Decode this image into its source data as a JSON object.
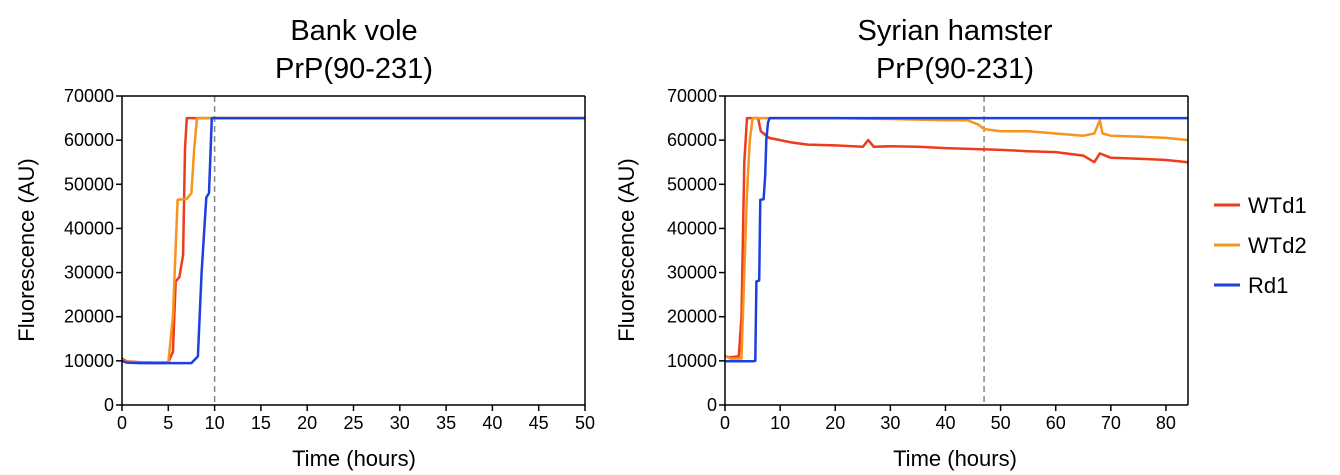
{
  "chart_data": [
    {
      "type": "line",
      "title_line1": "Bank vole",
      "title_line2": "PrP(90-231)",
      "xlabel": "Time (hours)",
      "ylabel": "Fluorescence (AU)",
      "xlim": [
        0,
        50
      ],
      "ylim": [
        0,
        70000
      ],
      "xticks": [
        0,
        5,
        10,
        15,
        20,
        25,
        30,
        35,
        40,
        45,
        50
      ],
      "yticks": [
        0,
        10000,
        20000,
        30000,
        40000,
        50000,
        60000,
        70000
      ],
      "grid": false,
      "vline_x": 10,
      "series": [
        {
          "name": "WTd1",
          "color": "#ee3b1b",
          "points": [
            [
              0,
              10500
            ],
            [
              0.5,
              9900
            ],
            [
              2,
              9700
            ],
            [
              4,
              9600
            ],
            [
              5,
              9700
            ],
            [
              5.5,
              12000
            ],
            [
              5.8,
              28000
            ],
            [
              6.2,
              29000
            ],
            [
              6.6,
              34000
            ],
            [
              6.8,
              58000
            ],
            [
              7,
              65000
            ],
            [
              10,
              65000
            ],
            [
              50,
              65000
            ]
          ]
        },
        {
          "name": "WTd2",
          "color": "#f7941d",
          "points": [
            [
              0,
              10200
            ],
            [
              0.5,
              9800
            ],
            [
              2,
              9600
            ],
            [
              4,
              9500
            ],
            [
              5,
              9600
            ],
            [
              5.5,
              20000
            ],
            [
              6,
              46500
            ],
            [
              7,
              46700
            ],
            [
              7.5,
              48000
            ],
            [
              7.8,
              58000
            ],
            [
              8.1,
              65000
            ],
            [
              10,
              65000
            ],
            [
              50,
              65000
            ]
          ]
        },
        {
          "name": "Rd1",
          "color": "#1c3fe0",
          "points": [
            [
              0,
              10000
            ],
            [
              0.5,
              9600
            ],
            [
              2,
              9500
            ],
            [
              7.5,
              9500
            ],
            [
              8.2,
              11000
            ],
            [
              8.6,
              30000
            ],
            [
              9.1,
              47000
            ],
            [
              9.4,
              48000
            ],
            [
              9.7,
              65000
            ],
            [
              10,
              65000
            ],
            [
              50,
              65000
            ]
          ]
        }
      ]
    },
    {
      "type": "line",
      "title_line1": "Syrian hamster",
      "title_line2": "PrP(90-231)",
      "xlabel": "Time (hours)",
      "ylabel": "Fluorescence (AU)",
      "xlim": [
        0,
        84
      ],
      "ylim": [
        0,
        70000
      ],
      "xticks": [
        0,
        10,
        20,
        30,
        40,
        50,
        60,
        70,
        80
      ],
      "yticks": [
        0,
        10000,
        20000,
        30000,
        40000,
        50000,
        60000,
        70000
      ],
      "grid": false,
      "vline_x": 47,
      "legend_position": "right",
      "series": [
        {
          "name": "WTd1",
          "color": "#ee3b1b",
          "points": [
            [
              0,
              11000
            ],
            [
              1,
              10800
            ],
            [
              2.5,
              11000
            ],
            [
              3,
              20000
            ],
            [
              3.5,
              55000
            ],
            [
              4,
              65000
            ],
            [
              6,
              65000
            ],
            [
              6.5,
              62000
            ],
            [
              8,
              60500
            ],
            [
              10,
              60000
            ],
            [
              12,
              59500
            ],
            [
              15,
              59000
            ],
            [
              20,
              58800
            ],
            [
              25,
              58500
            ],
            [
              26,
              60000
            ],
            [
              27,
              58500
            ],
            [
              30,
              58600
            ],
            [
              35,
              58500
            ],
            [
              40,
              58200
            ],
            [
              45,
              58000
            ],
            [
              50,
              57800
            ],
            [
              55,
              57500
            ],
            [
              60,
              57300
            ],
            [
              65,
              56500
            ],
            [
              67,
              55000
            ],
            [
              68,
              57000
            ],
            [
              70,
              56000
            ],
            [
              75,
              55800
            ],
            [
              80,
              55500
            ],
            [
              84,
              55000
            ]
          ]
        },
        {
          "name": "WTd2",
          "color": "#f7941d",
          "points": [
            [
              0,
              11200
            ],
            [
              1,
              10500
            ],
            [
              3,
              10500
            ],
            [
              3.5,
              30000
            ],
            [
              4,
              48000
            ],
            [
              4.5,
              60000
            ],
            [
              5,
              65000
            ],
            [
              20,
              65000
            ],
            [
              30,
              64800
            ],
            [
              40,
              64500
            ],
            [
              44,
              64500
            ],
            [
              46,
              63500
            ],
            [
              47,
              62500
            ],
            [
              50,
              62000
            ],
            [
              55,
              62000
            ],
            [
              60,
              61500
            ],
            [
              65,
              61000
            ],
            [
              67,
              61500
            ],
            [
              68,
              64500
            ],
            [
              68.5,
              61500
            ],
            [
              70,
              61000
            ],
            [
              75,
              60800
            ],
            [
              80,
              60500
            ],
            [
              84,
              60000
            ]
          ]
        },
        {
          "name": "Rd1",
          "color": "#1c3fe0",
          "points": [
            [
              0,
              9900
            ],
            [
              5,
              9900
            ],
            [
              5.5,
              10000
            ],
            [
              5.7,
              28000
            ],
            [
              6.2,
              28200
            ],
            [
              6.4,
              46500
            ],
            [
              7,
              46600
            ],
            [
              7.3,
              52000
            ],
            [
              7.5,
              60000
            ],
            [
              7.8,
              64000
            ],
            [
              8.1,
              65000
            ],
            [
              84,
              65000
            ]
          ]
        }
      ]
    }
  ]
}
